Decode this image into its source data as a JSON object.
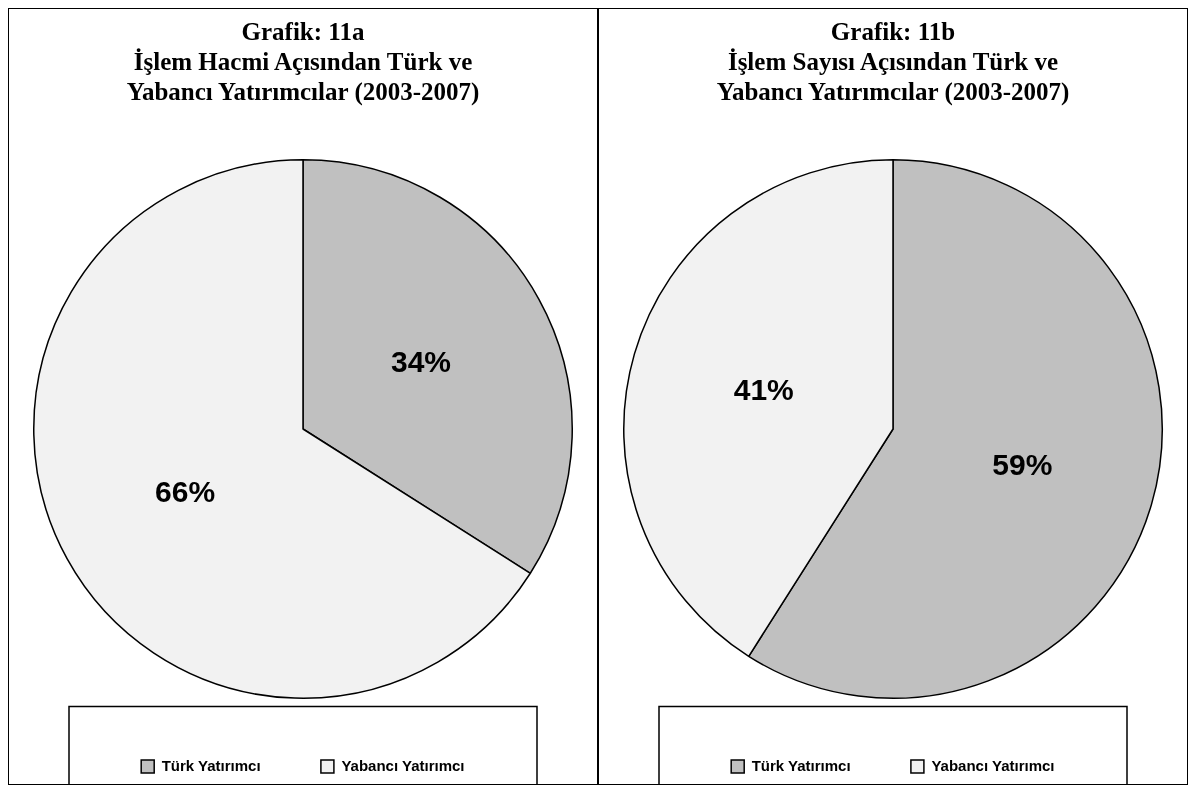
{
  "chart_data": [
    {
      "type": "pie",
      "title": "Grafik: 11a\nİşlem Hacmi Açısından Türk ve\nYabancı Yatırımcılar (2003-2007)",
      "categories": [
        "Türk Yatırımcı",
        "Yabancı Yatırımcı"
      ],
      "values": [
        34,
        66
      ],
      "value_labels": [
        "34%",
        "66%"
      ],
      "colors": [
        "#c0c0c0",
        "#f2f2f2"
      ],
      "legend": "bottom"
    },
    {
      "type": "pie",
      "title": "Grafik: 11b\nİşlem Sayısı Açısından Türk ve\nYabancı Yatırımcılar (2003-2007)",
      "categories": [
        "Türk Yatırımcı",
        "Yabancı Yatırımcı"
      ],
      "values": [
        59,
        41
      ],
      "value_labels": [
        "59%",
        "41%"
      ],
      "colors": [
        "#c0c0c0",
        "#f2f2f2"
      ],
      "legend": "bottom"
    }
  ]
}
